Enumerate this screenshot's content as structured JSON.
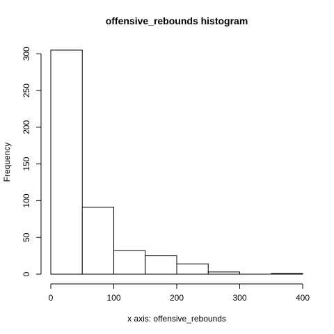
{
  "chart_data": {
    "type": "bar",
    "title": "offensive_rebounds histogram",
    "xlabel": "x axis: offensive_rebounds",
    "ylabel": "Frequency",
    "bins": [
      {
        "start": 0,
        "end": 50,
        "count": 305
      },
      {
        "start": 50,
        "end": 100,
        "count": 91
      },
      {
        "start": 100,
        "end": 150,
        "count": 32
      },
      {
        "start": 150,
        "end": 200,
        "count": 25
      },
      {
        "start": 200,
        "end": 250,
        "count": 14
      },
      {
        "start": 250,
        "end": 300,
        "count": 3
      },
      {
        "start": 300,
        "end": 350,
        "count": 0
      },
      {
        "start": 350,
        "end": 400,
        "count": 1
      }
    ],
    "x_ticks": [
      0,
      100,
      200,
      300,
      400
    ],
    "y_ticks": [
      0,
      50,
      100,
      150,
      200,
      250,
      300
    ],
    "xlim": [
      0,
      400
    ],
    "ylim": [
      0,
      305
    ],
    "grid": false,
    "legend": "none"
  }
}
